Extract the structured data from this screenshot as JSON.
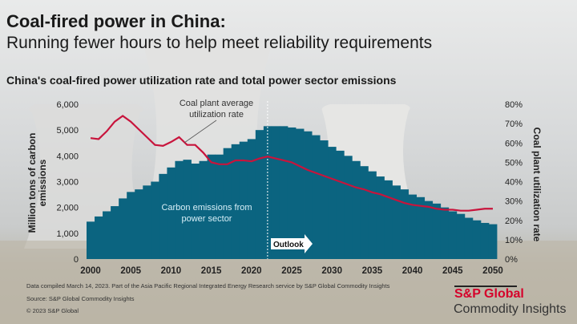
{
  "title": "Coal-fired power in China:",
  "subtitle": "Running fewer hours to help meet reliability requirements",
  "chart_data": {
    "type": "bar+line",
    "title": "China's coal-fired power utilization rate and total power sector emissions",
    "x": [
      2000,
      2001,
      2002,
      2003,
      2004,
      2005,
      2006,
      2007,
      2008,
      2009,
      2010,
      2011,
      2012,
      2013,
      2014,
      2015,
      2016,
      2017,
      2018,
      2019,
      2020,
      2021,
      2022,
      2023,
      2024,
      2025,
      2026,
      2027,
      2028,
      2029,
      2030,
      2031,
      2032,
      2033,
      2034,
      2035,
      2036,
      2037,
      2038,
      2039,
      2040,
      2041,
      2042,
      2043,
      2044,
      2045,
      2046,
      2047,
      2048,
      2049,
      2050
    ],
    "xticks": [
      "2000",
      "2005",
      "2010",
      "2015",
      "2020",
      "2025",
      "2030",
      "2035",
      "2040",
      "2045",
      "2050"
    ],
    "series": [
      {
        "name": "Carbon emissions from power sector",
        "axis": "left",
        "type": "bar",
        "color": "#0b6480",
        "values": [
          1450,
          1650,
          1850,
          2050,
          2350,
          2600,
          2700,
          2850,
          3000,
          3300,
          3550,
          3800,
          3850,
          3700,
          3800,
          4050,
          4050,
          4300,
          4450,
          4550,
          4650,
          5000,
          5150,
          5150,
          5150,
          5100,
          5050,
          4950,
          4800,
          4600,
          4350,
          4200,
          4000,
          3800,
          3600,
          3400,
          3200,
          3050,
          2850,
          2700,
          2500,
          2400,
          2250,
          2150,
          2000,
          1850,
          1750,
          1600,
          1500,
          1400,
          1350
        ]
      },
      {
        "name": "Coal plant average utilization rate",
        "axis": "right",
        "type": "line",
        "color": "#c8143c",
        "values": [
          62.5,
          62,
          66,
          71,
          74,
          71,
          67,
          63,
          59,
          58.5,
          60.5,
          63,
          59,
          59,
          55,
          50,
          49,
          49,
          51,
          51,
          50.5,
          52,
          53,
          52,
          51,
          50,
          48,
          46,
          44.5,
          43,
          41.5,
          40,
          38.5,
          37,
          36,
          34.5,
          33.5,
          32,
          30.5,
          29,
          28,
          27.5,
          27,
          26,
          25.5,
          25.5,
          25,
          25,
          25.5,
          26,
          26
        ]
      }
    ],
    "ylabel_left": "Million tons of carbon emissions",
    "ylim_left": [
      0,
      6000
    ],
    "yticks_left": [
      "0",
      "1,000",
      "2,000",
      "3,000",
      "4,000",
      "5,000",
      "6,000"
    ],
    "ylabel_right": "Coal plant utilization rate",
    "ylim_right": [
      0,
      80
    ],
    "yticks_right": [
      "0%",
      "10%",
      "20%",
      "30%",
      "40%",
      "50%",
      "60%",
      "70%",
      "80%"
    ],
    "annotations": {
      "line_label": "Coal plant average utilization rate",
      "line_label_1": "Coal plant average",
      "line_label_2": "utilization rate",
      "bar_label_1": "Carbon emissions from",
      "bar_label_2": "power sector",
      "outlook": "Outlook",
      "outlook_start": 2022.5
    },
    "grid": false
  },
  "footer": {
    "note": "Data compiled March 14, 2023. Part of the Asia Pacific Regional Integrated Energy Research service by S&P Global Commodity Insights",
    "source": "Source: S&P Global Commodity Insights",
    "copyright": "© 2023 S&P Global"
  },
  "brand": {
    "name": "S&P Global",
    "tagline": "Commodity Insights",
    "color": "#d6002a"
  }
}
